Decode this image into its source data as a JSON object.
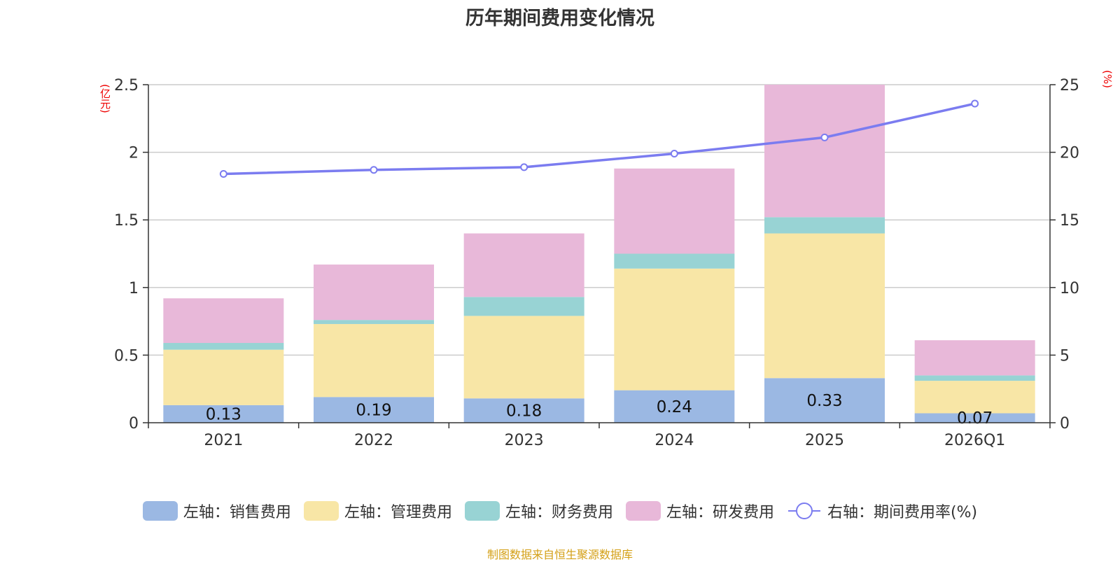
{
  "chart_data": {
    "type": "bar",
    "stacked": true,
    "title": "历年期间费用变化情况",
    "categories": [
      "2021",
      "2022",
      "2023",
      "2024",
      "2025",
      "2026Q1"
    ],
    "series": [
      {
        "name": "左轴：销售费用",
        "axis": "left",
        "color": "#9bb8e3",
        "values": [
          0.13,
          0.19,
          0.18,
          0.24,
          0.33,
          0.07
        ],
        "labels": [
          "0.13",
          "0.19",
          "0.18",
          "0.24",
          "0.33",
          "0.07"
        ]
      },
      {
        "name": "左轴：管理费用",
        "axis": "left",
        "color": "#f8e6a6",
        "values": [
          0.41,
          0.54,
          0.61,
          0.9,
          1.07,
          0.24
        ]
      },
      {
        "name": "左轴：财务费用",
        "axis": "left",
        "color": "#98d3d4",
        "values": [
          0.05,
          0.03,
          0.14,
          0.11,
          0.12,
          0.04
        ]
      },
      {
        "name": "左轴：研发费用",
        "axis": "left",
        "color": "#e8b8d9",
        "values": [
          0.33,
          0.41,
          0.47,
          0.63,
          0.98,
          0.26
        ]
      }
    ],
    "line_series": {
      "name": "右轴：期间费用率(%)",
      "axis": "right",
      "color": "#7b7cf0",
      "values": [
        18.4,
        18.7,
        18.9,
        19.9,
        21.1,
        23.6
      ]
    },
    "left_axis": {
      "unit": "(亿元)",
      "min": 0,
      "max": 2.5,
      "ticks": [
        "0",
        "0.5",
        "1",
        "1.5",
        "2",
        "2.5"
      ]
    },
    "right_axis": {
      "unit": "(%)",
      "min": 0,
      "max": 25,
      "ticks": [
        "0",
        "5",
        "10",
        "15",
        "20",
        "25"
      ]
    },
    "grid": true,
    "legend_position": "bottom"
  },
  "source_note": "制图数据来自恒生聚源数据库"
}
